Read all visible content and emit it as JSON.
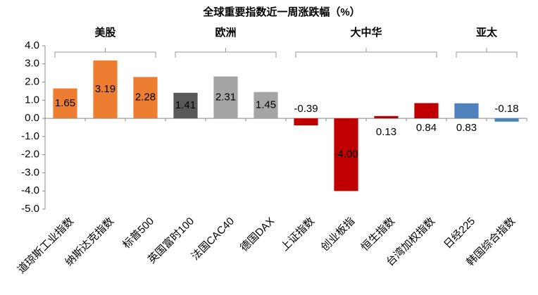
{
  "chart_data": {
    "type": "bar",
    "title": "全球重要指数近一周涨跌幅（%）",
    "groups": [
      "美股",
      "欧洲",
      "大中华",
      "亚太"
    ],
    "categories": [
      "道琼斯工业指数",
      "纳斯达克指数",
      "标普500",
      "英国富时100",
      "法国CAC40",
      "德国DAX",
      "上证指数",
      "创业板指",
      "恒生指数",
      "台湾加权指数",
      "日经225",
      "韩国综合指数"
    ],
    "values": [
      1.65,
      3.19,
      2.28,
      1.41,
      2.31,
      1.45,
      -0.39,
      -4.0,
      0.13,
      0.84,
      0.83,
      -0.18
    ],
    "value_labels": [
      "1.65",
      "3.19",
      "2.28",
      "1.41",
      "2.31",
      "1.45",
      "-0.39",
      "-4.00",
      "0.13",
      "0.84",
      "0.83",
      "-0.18"
    ],
    "colors": [
      "#ED7D31",
      "#ED7D31",
      "#ED7D31",
      "#595959",
      "#A5A5A5",
      "#A5A5A5",
      "#C00000",
      "#C00000",
      "#C00000",
      "#C00000",
      "#4F81BD",
      "#4F81BD"
    ],
    "ylim": [
      -5,
      4
    ],
    "yticks": [
      {
        "value": 4,
        "label": "4.0"
      },
      {
        "value": 3,
        "label": "3.0"
      },
      {
        "value": 2,
        "label": "2.0"
      },
      {
        "value": 1,
        "label": "1.0"
      },
      {
        "value": 0,
        "label": "0.0"
      },
      {
        "value": -1,
        "label": "-1.0"
      },
      {
        "value": -2,
        "label": "-2.0"
      },
      {
        "value": -3,
        "label": "-3.0"
      },
      {
        "value": -4,
        "label": "-4.0"
      },
      {
        "value": -5,
        "label": "-5.0"
      }
    ],
    "grid": false
  }
}
